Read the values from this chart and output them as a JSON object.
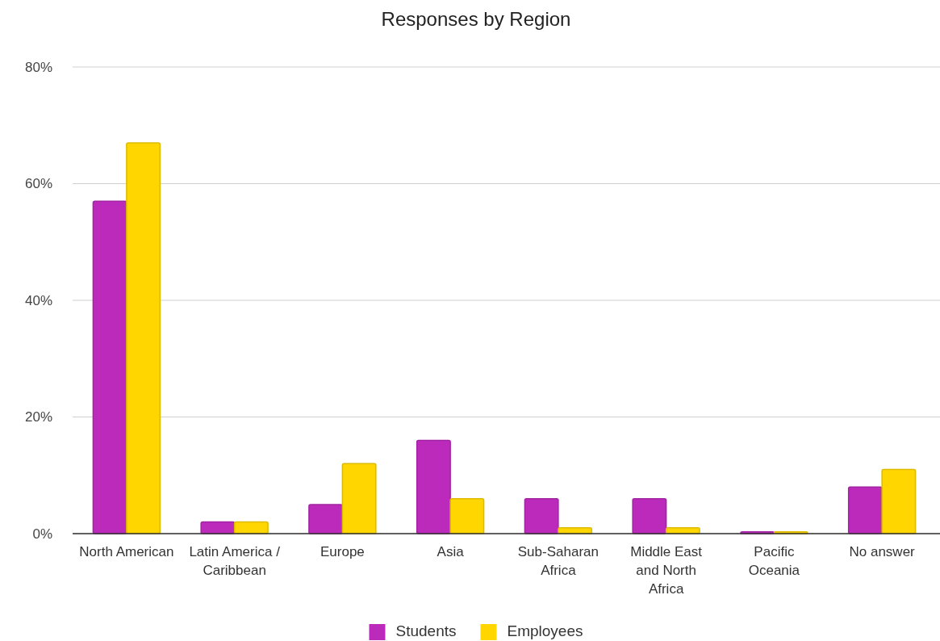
{
  "chart_data": {
    "type": "bar",
    "title": "Responses by Region",
    "categories": [
      "North American",
      "Latin America / Caribbean",
      "Europe",
      "Asia",
      "Sub-Saharan Africa",
      "Middle East and North Africa",
      "Pacific Oceania",
      "No answer"
    ],
    "series": [
      {
        "name": "Students",
        "color": "#bb2abb",
        "values": [
          57,
          2,
          5,
          16,
          6,
          6,
          0.3,
          8
        ]
      },
      {
        "name": "Employees",
        "color": "#ffd600",
        "values": [
          67,
          2,
          12,
          6,
          1,
          1,
          0.3,
          11
        ]
      }
    ],
    "ylim": [
      0,
      80
    ],
    "yticks": [
      {
        "value": 0,
        "label": "0%"
      },
      {
        "value": 20,
        "label": "20%"
      },
      {
        "value": 40,
        "label": "40%"
      },
      {
        "value": 60,
        "label": "60%"
      },
      {
        "value": 80,
        "label": "80%"
      }
    ],
    "grid": "y",
    "legend": "bottom"
  }
}
